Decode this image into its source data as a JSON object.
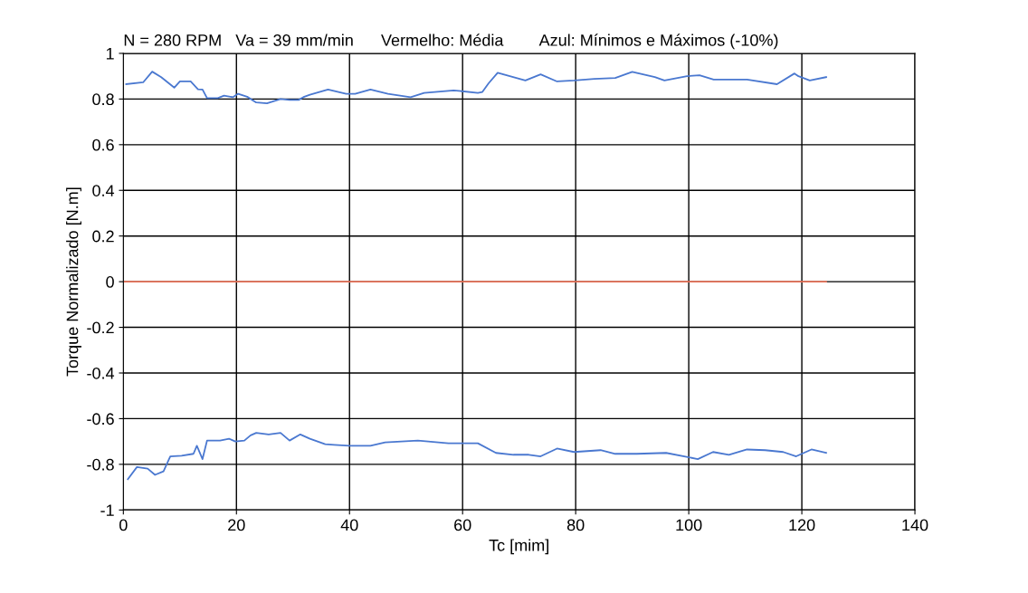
{
  "chart_data": {
    "type": "line",
    "title": "N = 280 RPM   Va = 39 mm/min      Vermelho: Média        Azul: Mínimos e Máximos (-10%)",
    "xlabel": "Tc [mim]",
    "ylabel": "Torque Normalizado [N.m]",
    "xlim": [
      0,
      140
    ],
    "xticks": [
      0,
      20,
      40,
      60,
      80,
      100,
      120,
      140
    ],
    "ylim": [
      -1,
      1
    ],
    "yticks": [
      -1,
      -0.8,
      -0.6,
      -0.4,
      -0.2,
      0,
      0.2,
      0.4,
      0.6,
      0.8,
      1
    ],
    "grid": true,
    "marker": "none",
    "line_style": "solid",
    "series": [
      {
        "color": "#4a78d0",
        "x": [
          0.5,
          3.5,
          5.1,
          6.7,
          9.0,
          10,
          11.9,
          13.2,
          14,
          14.8,
          16.7,
          17.8,
          19.4,
          20.3,
          21.9,
          23.5,
          25.4,
          27.8,
          29.4,
          31,
          32,
          33,
          36.2,
          39.4,
          41,
          43.7,
          46.8,
          50.8,
          53.2,
          58.4,
          62.7,
          63.5,
          64.6,
          66.2,
          71.1,
          73.8,
          76.7,
          79.7,
          83.3,
          87,
          90,
          94,
          95.7,
          99.7,
          101.9,
          104.4,
          110.3,
          115.6,
          118.7,
          119.4,
          121.4,
          124.3
        ],
        "values": [
          0.865,
          0.873,
          0.92,
          0.896,
          0.85,
          0.877,
          0.877,
          0.843,
          0.842,
          0.804,
          0.804,
          0.815,
          0.808,
          0.823,
          0.81,
          0.785,
          0.781,
          0.8,
          0.796,
          0.796,
          0.81,
          0.819,
          0.842,
          0.823,
          0.823,
          0.842,
          0.823,
          0.808,
          0.827,
          0.838,
          0.827,
          0.831,
          0.869,
          0.915,
          0.881,
          0.908,
          0.877,
          0.881,
          0.888,
          0.892,
          0.919,
          0.896,
          0.881,
          0.9,
          0.904,
          0.885,
          0.885,
          0.865,
          0.912,
          0.9,
          0.881,
          0.896
        ]
      },
      {
        "color": "#4a78d0",
        "x": [
          0.8,
          2.4,
          4.3,
          5.6,
          7.1,
          8.3,
          10.3,
          12.4,
          13,
          14,
          14.8,
          17.1,
          18.7,
          19.8,
          21.4,
          22.5,
          23.5,
          25.7,
          27.8,
          29.4,
          31.3,
          33,
          35.7,
          37.3,
          40,
          43.7,
          46.3,
          52.1,
          57.5,
          62.7,
          65.9,
          69,
          71.7,
          73.8,
          76.7,
          79.7,
          84.4,
          87,
          90.8,
          96,
          99.2,
          101.6,
          104.3,
          107.1,
          110.3,
          113.5,
          116.7,
          119,
          121.7,
          124.3
        ],
        "values": [
          -0.865,
          -0.812,
          -0.819,
          -0.846,
          -0.831,
          -0.765,
          -0.762,
          -0.754,
          -0.719,
          -0.777,
          -0.696,
          -0.696,
          -0.688,
          -0.7,
          -0.696,
          -0.673,
          -0.662,
          -0.669,
          -0.662,
          -0.696,
          -0.669,
          -0.688,
          -0.712,
          -0.715,
          -0.719,
          -0.719,
          -0.704,
          -0.696,
          -0.708,
          -0.708,
          -0.75,
          -0.758,
          -0.758,
          -0.765,
          -0.731,
          -0.746,
          -0.738,
          -0.754,
          -0.754,
          -0.75,
          -0.765,
          -0.777,
          -0.746,
          -0.758,
          -0.735,
          -0.738,
          -0.746,
          -0.765,
          -0.735,
          -0.75
        ]
      },
      {
        "color": "#e8735a",
        "x": [
          0,
          124.3
        ],
        "values": [
          0,
          0
        ]
      }
    ]
  }
}
